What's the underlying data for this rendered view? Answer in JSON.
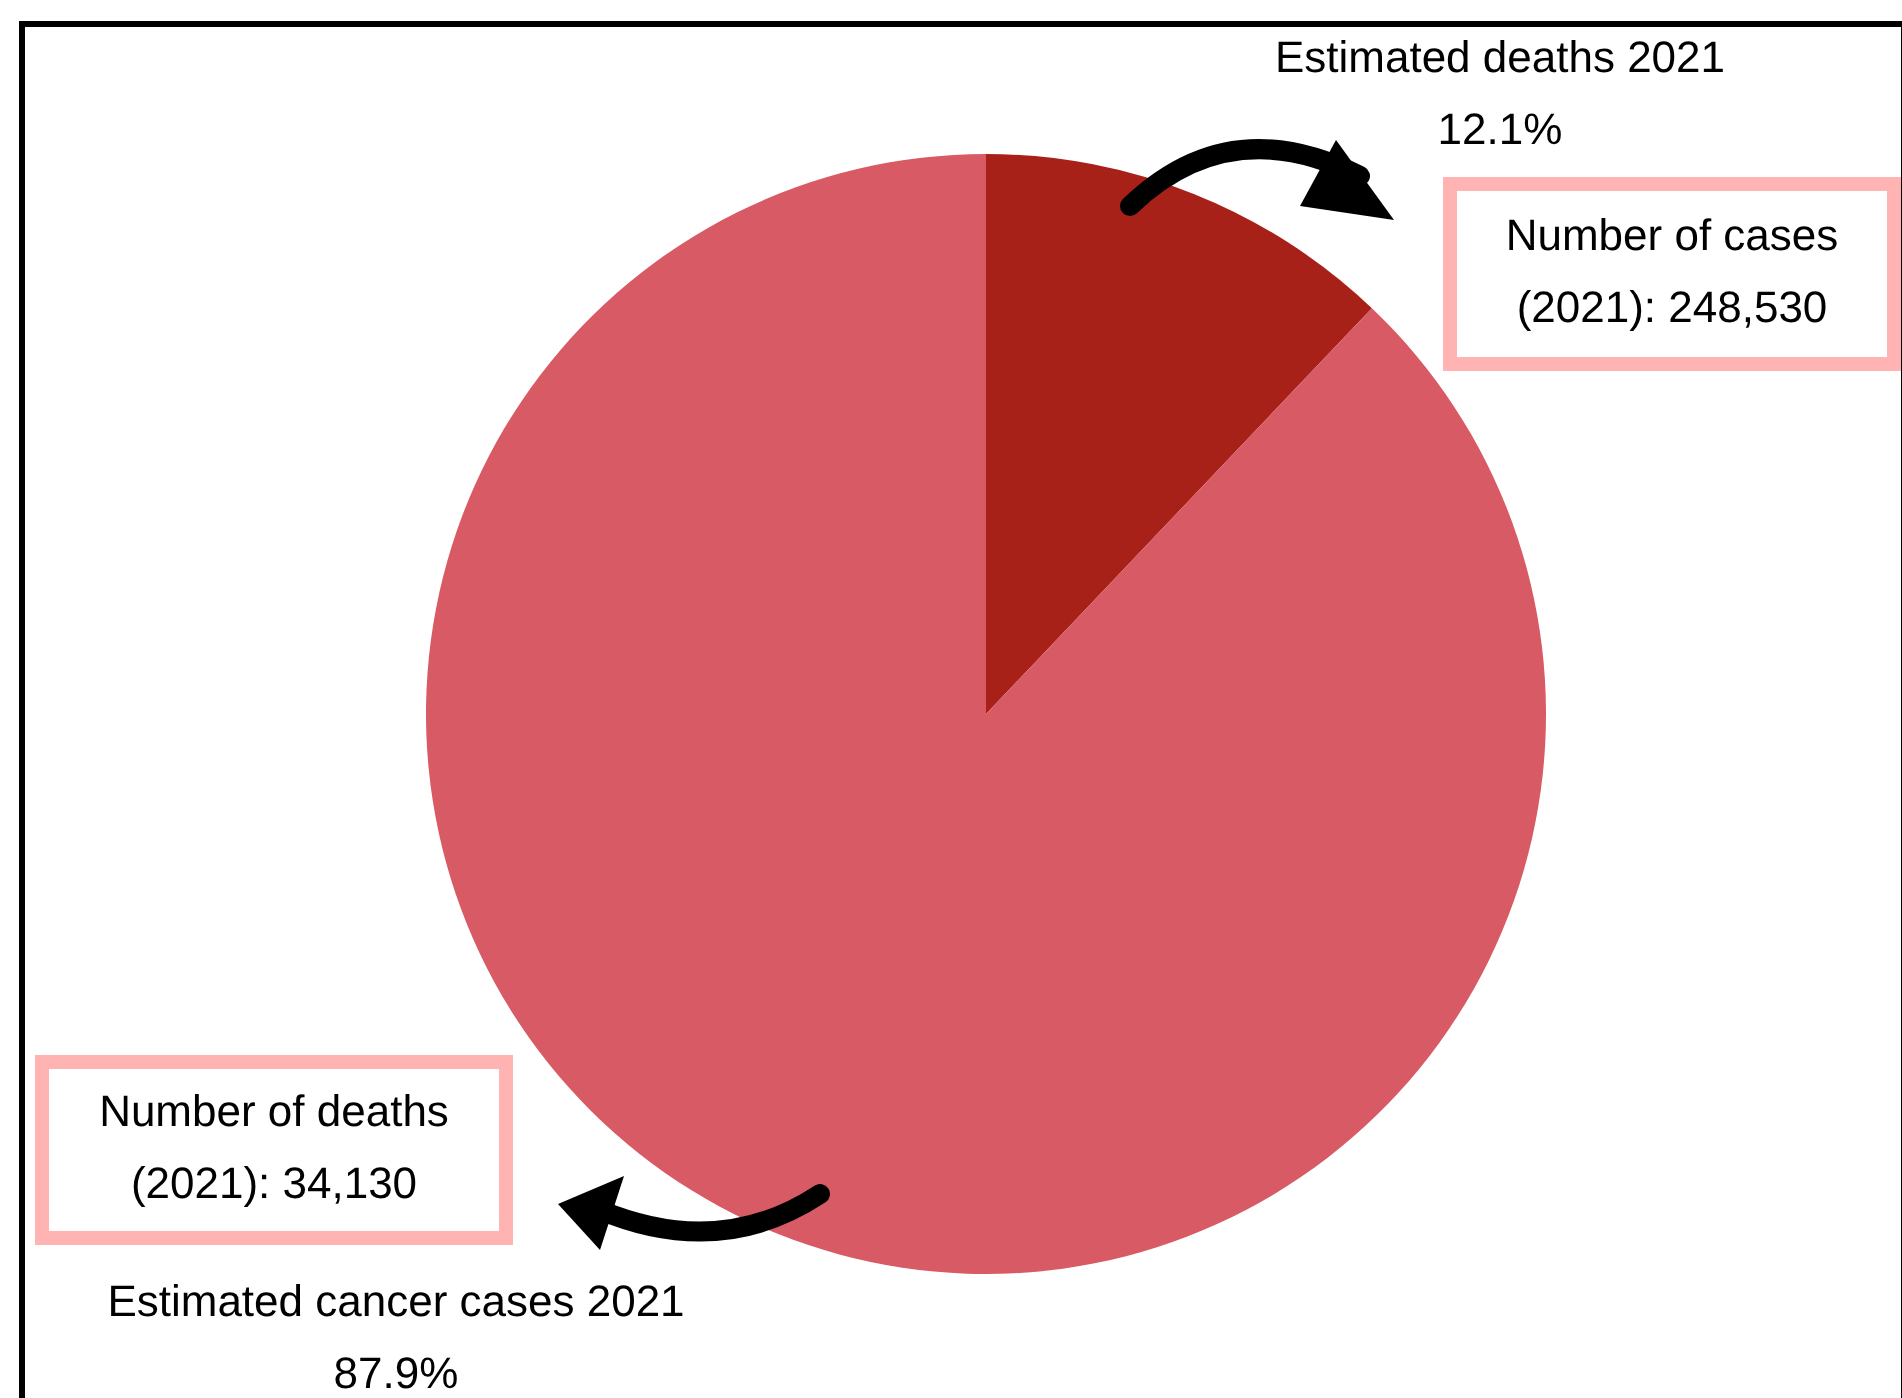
{
  "chart_data": {
    "type": "pie",
    "categories": [
      "Estimated deaths 2021",
      "Estimated cancer cases 2021"
    ],
    "values": [
      12.1,
      87.9
    ],
    "colors": [
      "#a82119",
      "#d75a64"
    ],
    "value_labels": [
      "12.1%",
      "87.9%"
    ],
    "annotations": [
      "Number of cases (2021): 248,530",
      "Number of deaths (2021): 34,130"
    ]
  }
}
